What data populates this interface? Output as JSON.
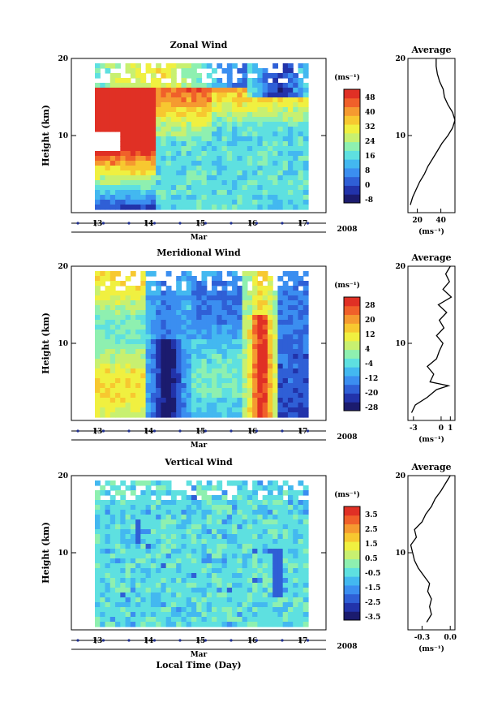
{
  "figure": {
    "colormap": [
      "#1b1b6e",
      "#2233aa",
      "#2f5fd6",
      "#3b8ef0",
      "#43b8f0",
      "#5ee0e0",
      "#8ef0b0",
      "#c8f070",
      "#f0f040",
      "#f7c830",
      "#f59a30",
      "#f0602a",
      "#e03025"
    ],
    "panels": [
      {
        "key": "zonal",
        "title": "Zonal Wind",
        "ylabel": "Height (km)",
        "yticks": [
          "20",
          "10"
        ],
        "xticks": [
          "13",
          "14",
          "15",
          "16",
          "17"
        ],
        "xlabel": "Mar",
        "year": "2008",
        "unit": "(ms⁻¹)",
        "cbar_labels": [
          "48",
          "40",
          "32",
          "24",
          "16",
          "8",
          "0",
          "-8"
        ],
        "avg": {
          "title": "Average",
          "xticks": [
            "20",
            "40"
          ],
          "unit": "(ms⁻¹)",
          "yticks": [
            "20",
            "10"
          ],
          "xlim": [
            12,
            52
          ],
          "profile": [
            [
              14,
              1.0
            ],
            [
              16,
              2
            ],
            [
              19,
              3
            ],
            [
              22,
              4
            ],
            [
              26,
              5
            ],
            [
              29,
              6
            ],
            [
              33,
              7
            ],
            [
              37,
              8
            ],
            [
              41,
              9
            ],
            [
              46,
              10
            ],
            [
              50,
              11
            ],
            [
              52,
              12
            ],
            [
              50,
              13
            ],
            [
              46,
              14
            ],
            [
              43,
              15
            ],
            [
              42,
              16
            ],
            [
              39,
              17
            ],
            [
              37,
              18
            ],
            [
              36,
              19
            ],
            [
              36,
              20
            ]
          ]
        }
      },
      {
        "key": "meridional",
        "title": "Meridional Wind",
        "ylabel": "Height (km)",
        "yticks": [
          "20",
          "10"
        ],
        "xticks": [
          "13",
          "14",
          "15",
          "16",
          "17"
        ],
        "xlabel": "Mar",
        "year": "2008",
        "unit": "(ms⁻¹)",
        "cbar_labels": [
          "28",
          "20",
          "12",
          "4",
          "-4",
          "-12",
          "-20",
          "-28"
        ],
        "avg": {
          "title": "Average",
          "xticks": [
            "-3",
            "0",
            "1"
          ],
          "unit": "(ms⁻¹)",
          "yticks": [
            "20",
            "10"
          ],
          "xlim": [
            -3.6,
            1.5
          ],
          "profile": [
            [
              -3.2,
              1
            ],
            [
              -2.8,
              2
            ],
            [
              -1.5,
              3
            ],
            [
              -0.5,
              4
            ],
            [
              0.8,
              4.5
            ],
            [
              -1.2,
              5
            ],
            [
              -0.8,
              6
            ],
            [
              -1.5,
              7
            ],
            [
              -0.5,
              8
            ],
            [
              -0.2,
              9
            ],
            [
              0.2,
              10
            ],
            [
              -0.5,
              11
            ],
            [
              0.3,
              12
            ],
            [
              -0.2,
              13
            ],
            [
              0.6,
              14
            ],
            [
              -0.3,
              15
            ],
            [
              1.1,
              16
            ],
            [
              0.2,
              17
            ],
            [
              0.9,
              18
            ],
            [
              0.5,
              19
            ],
            [
              1.0,
              20
            ]
          ]
        }
      },
      {
        "key": "vertical",
        "title": "Vertical Wind",
        "ylabel": "Height (km)",
        "yticks": [
          "20",
          "10"
        ],
        "xticks": [
          "13",
          "14",
          "15",
          "16",
          "17"
        ],
        "xlabel": "Mar",
        "year": "2008",
        "unit": "(ms⁻¹)",
        "cbar_labels": [
          "3.5",
          "2.5",
          "1.5",
          "0.5",
          "-0.5",
          "-1.5",
          "-2.5",
          "-3.5"
        ],
        "avg": {
          "title": "Average",
          "xticks": [
            "-0.3",
            "0.0"
          ],
          "unit": "(ms⁻¹)",
          "yticks": [
            "20",
            "10"
          ],
          "xlim": [
            -0.45,
            0.05
          ],
          "profile": [
            [
              -0.25,
              1
            ],
            [
              -0.2,
              2
            ],
            [
              -0.22,
              3
            ],
            [
              -0.2,
              4
            ],
            [
              -0.24,
              5
            ],
            [
              -0.22,
              6
            ],
            [
              -0.28,
              7
            ],
            [
              -0.34,
              8
            ],
            [
              -0.38,
              9
            ],
            [
              -0.4,
              10
            ],
            [
              -0.42,
              11
            ],
            [
              -0.36,
              12
            ],
            [
              -0.38,
              13
            ],
            [
              -0.3,
              14
            ],
            [
              -0.26,
              15
            ],
            [
              -0.2,
              16
            ],
            [
              -0.16,
              17
            ],
            [
              -0.1,
              18
            ],
            [
              -0.05,
              19
            ],
            [
              0.0,
              20
            ]
          ]
        }
      }
    ],
    "xaxis_title": "Local Time (Day)"
  }
}
